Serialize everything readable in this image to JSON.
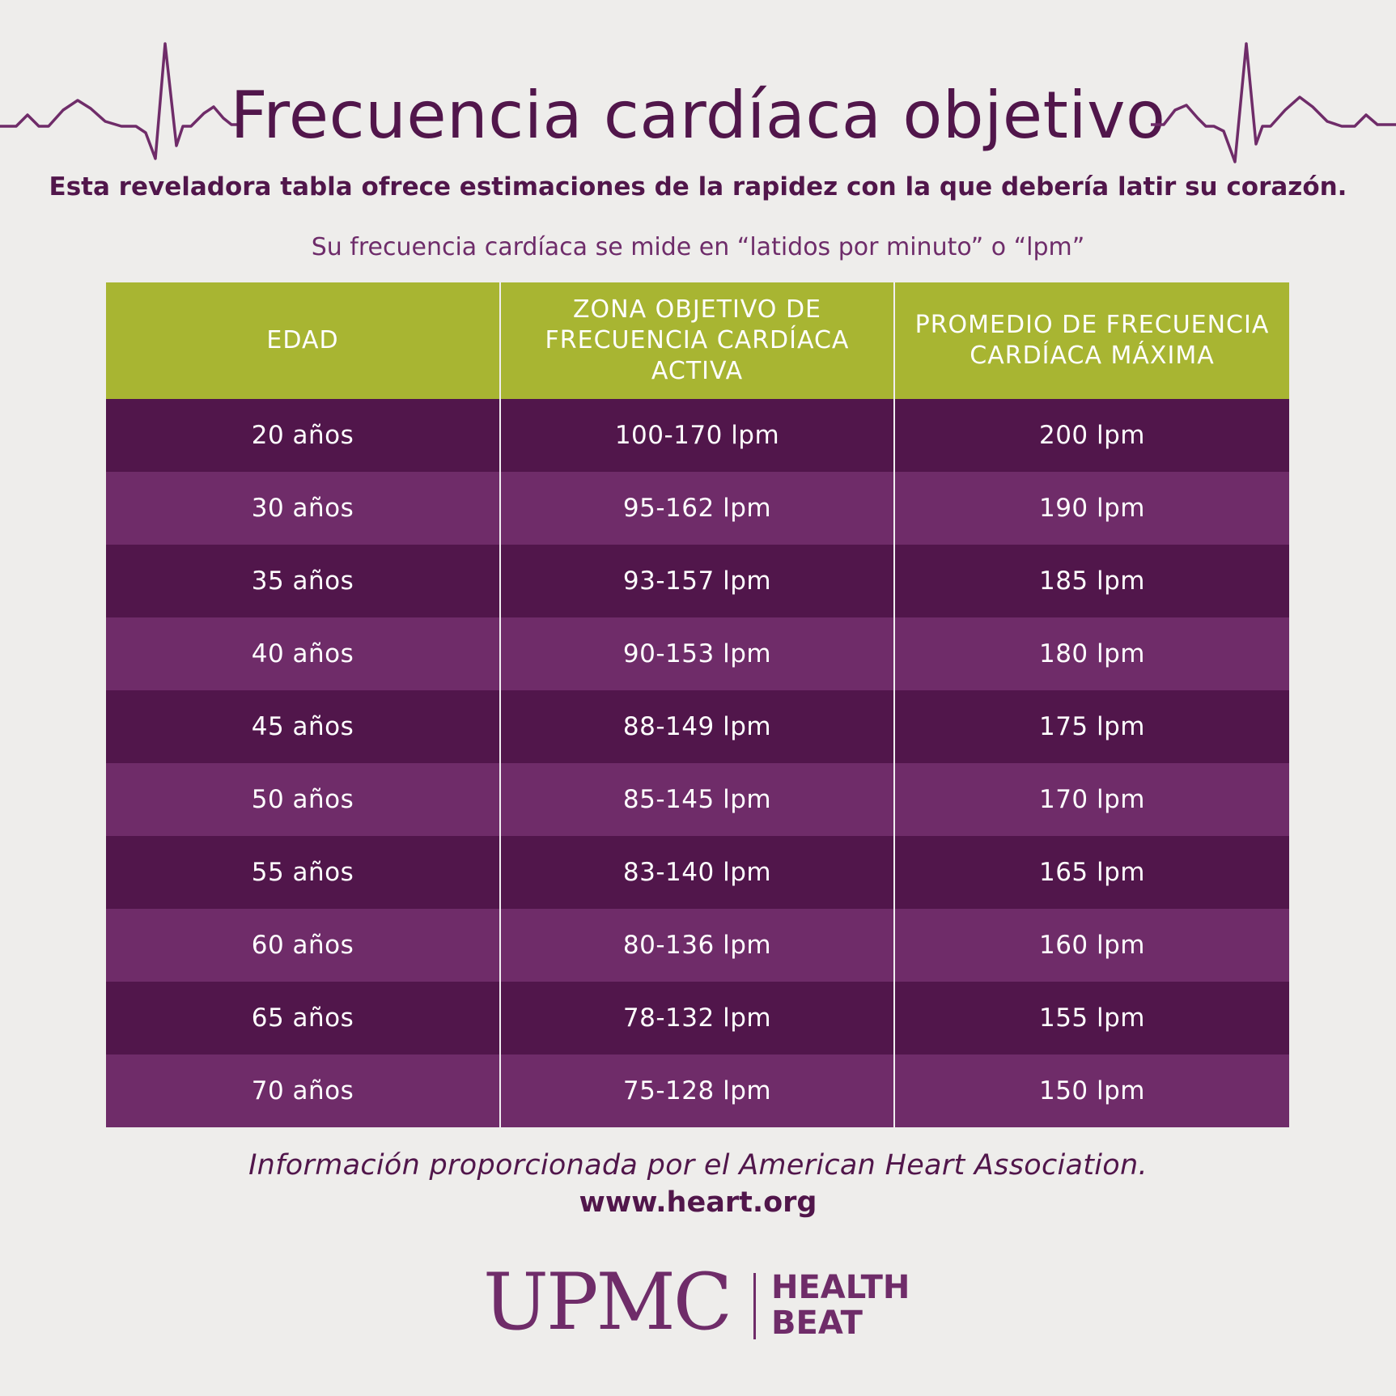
{
  "title": "Frecuencia cardíaca objetivo",
  "subtitle": "Esta reveladora tabla ofrece estimaciones de la rapidez con la que debería latir su corazón.",
  "note": "Su frecuencia cardíaca se mide en “latidos por minuto” o “lpm”",
  "table": {
    "headers": [
      "EDAD",
      "ZONA OBJETIVO DE FRECUENCIA CARDÍACA ACTIVA",
      "PROMEDIO DE FRECUENCIA CARDÍACA MÁXIMA"
    ],
    "rows": [
      [
        "20 años",
        "100-170 lpm",
        "200 lpm"
      ],
      [
        "30 años",
        "95-162 lpm",
        "190 lpm"
      ],
      [
        "35 años",
        "93-157 lpm",
        "185 lpm"
      ],
      [
        "40 años",
        "90-153 lpm",
        "180 lpm"
      ],
      [
        "45 años",
        "88-149 lpm",
        "175 lpm"
      ],
      [
        "50 años",
        "85-145 lpm",
        "170 lpm"
      ],
      [
        "55 años",
        "83-140 lpm",
        "165 lpm"
      ],
      [
        "60 años",
        "80-136 lpm",
        "160 lpm"
      ],
      [
        "65 años",
        "78-132 lpm",
        "155 lpm"
      ],
      [
        "70 años",
        "75-128 lpm",
        "150 lpm"
      ]
    ]
  },
  "footer": {
    "source": "Información proporcionada por el American Heart Association.",
    "url": "www.heart.org"
  },
  "logo": {
    "brand": "UPMC",
    "line1": "HEALTH",
    "line2": "BEAT"
  },
  "colors": {
    "background": "#eeedeb",
    "purple_dark": "#51164b",
    "purple_light": "#6f2c69",
    "header_green": "#a8b532",
    "text_white": "#ffffff"
  },
  "icons": [
    "heartbeat-line-icon"
  ]
}
